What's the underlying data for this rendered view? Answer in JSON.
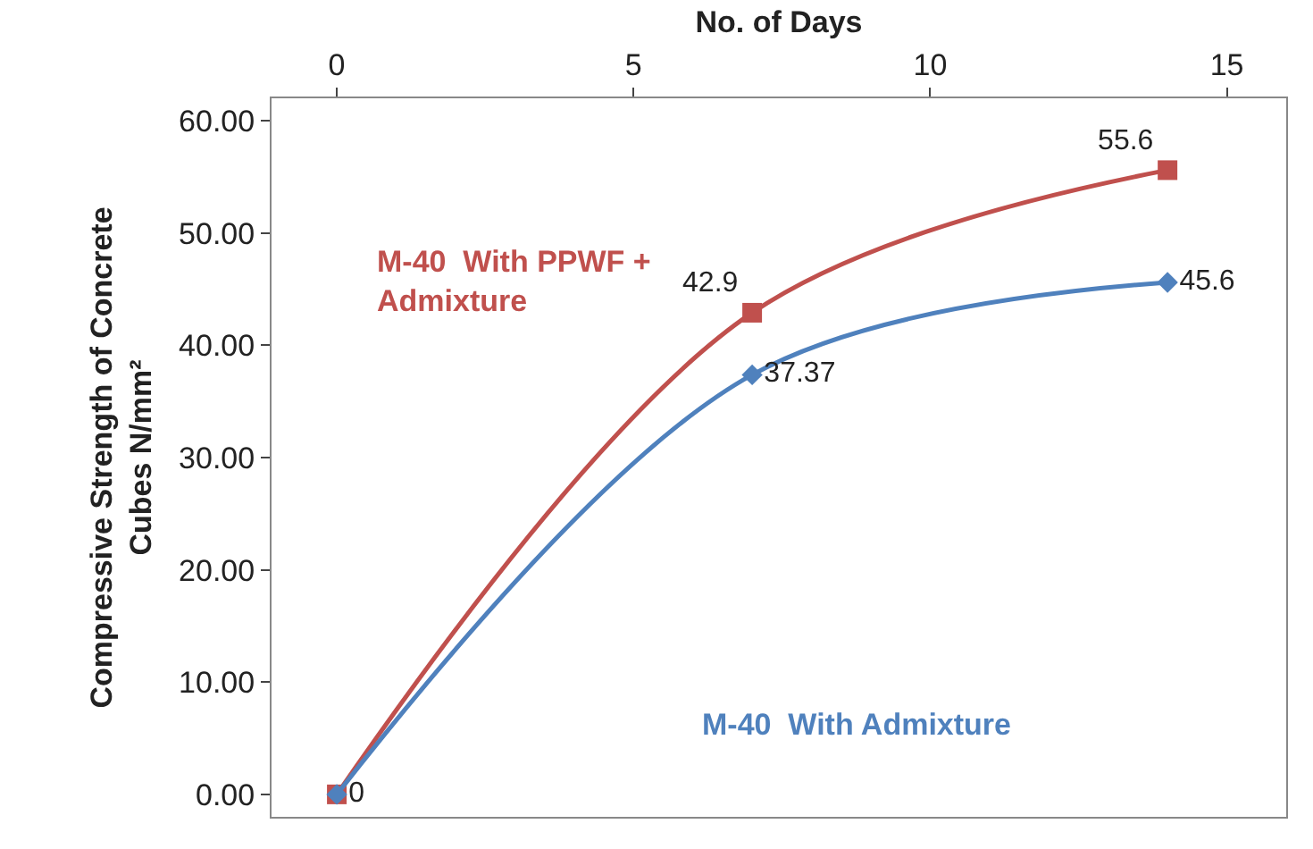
{
  "chart_data": {
    "type": "line",
    "xlabel": "No. of Days",
    "ylabel": "Compressive Strength of Concrete\nCubes N/mm²",
    "x": [
      0,
      7,
      14
    ],
    "series": [
      {
        "name": "M-40  With PPWF + Admixture",
        "color": "#c0504d",
        "marker": "square",
        "values": [
          0,
          42.9,
          55.6
        ],
        "value_labels": [
          null,
          "42.9",
          "55.6"
        ]
      },
      {
        "name": "M-40  With Admixture",
        "color": "#4f81bd",
        "marker": "diamond",
        "values": [
          0,
          37.37,
          45.6
        ],
        "value_labels": [
          "0",
          "37.37",
          "45.6"
        ]
      }
    ],
    "xlim": [
      -1.1,
      16
    ],
    "xticks": [
      0,
      5,
      10,
      15
    ],
    "ylim": [
      -2,
      62
    ],
    "yticks": [
      {
        "value": 0,
        "label": "0.00"
      },
      {
        "value": 10,
        "label": "10.00"
      },
      {
        "value": 20,
        "label": "20.00"
      },
      {
        "value": 30,
        "label": "30.00"
      },
      {
        "value": 40,
        "label": "40.00"
      },
      {
        "value": 50,
        "label": "50.00"
      },
      {
        "value": 60,
        "label": "60.00"
      }
    ],
    "grid": false,
    "legend": false,
    "line_style": "solid"
  }
}
